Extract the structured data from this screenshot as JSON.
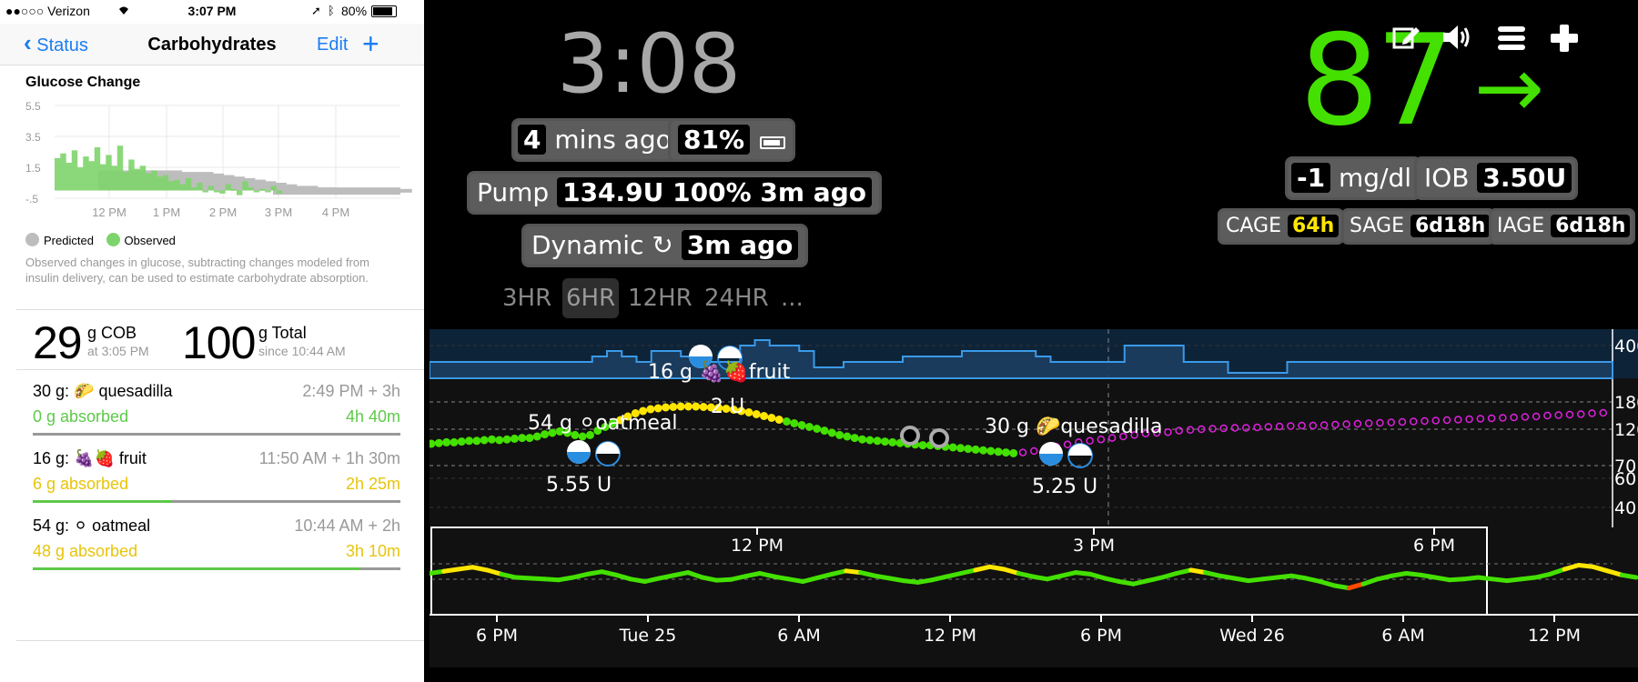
{
  "left": {
    "status_bar": {
      "carrier": "●●○○○ Verizon",
      "time": "3:07 PM",
      "battery": "80%"
    },
    "nav": {
      "back_label": "Status",
      "title": "Carbohydrates",
      "edit_label": "Edit",
      "add_label": "+"
    },
    "glucose_change": {
      "title": "Glucose Change",
      "legend_predicted": "Predicted",
      "legend_observed": "Observed",
      "colors": {
        "observed": "#7ed46c",
        "predicted": "#bdbdbd"
      },
      "caption": "Observed changes in glucose, subtracting changes modeled from insulin delivery, can be used to estimate carbohydrate absorption."
    },
    "cob": {
      "value": "29",
      "unit": "g COB",
      "sub": "at 3:05 PM"
    },
    "total": {
      "value": "100",
      "unit": "g Total",
      "sub": "since 10:44 AM"
    },
    "entries": [
      {
        "name": "30 g: 🌮 quesadilla",
        "time": "2:49 PM + 3h",
        "absorbed": "0 g absorbed",
        "remaining": "4h 40m",
        "color": "#5ec94a",
        "progress": 0.0
      },
      {
        "name": "16 g: 🍇🍓 fruit",
        "time": "11:50 AM + 1h 30m",
        "absorbed": "6 g absorbed",
        "remaining": "2h 25m",
        "color": "#e8c40a",
        "progress": 0.375
      },
      {
        "name": "54 g: ⚪ oatmeal",
        "time": "10:44 AM + 2h",
        "absorbed": "48 g absorbed",
        "remaining": "3h 10m",
        "color": "#e8c40a",
        "progress": 0.89
      }
    ]
  },
  "right": {
    "clock": "3:08",
    "bg": {
      "value": "87",
      "arrow": "→",
      "color": "#44e000"
    },
    "icons": [
      "pencil-icon",
      "speaker-icon",
      "menu-icon",
      "plus-icon"
    ],
    "last_reading": {
      "value": "4",
      "label": "mins ago"
    },
    "phone_battery": {
      "value": "81%"
    },
    "pump": {
      "label": "Pump",
      "value": "134.9U 100% 3m ago"
    },
    "loop": {
      "label": "Dynamic ↻",
      "value": "3m ago"
    },
    "delta": {
      "value": "-1",
      "unit": "mg/dl"
    },
    "iob": {
      "label": "IOB",
      "value": "3.50U"
    },
    "cage": {
      "label": "CAGE",
      "value": "64h"
    },
    "sage": {
      "label": "SAGE",
      "value": "6d18h"
    },
    "iage": {
      "label": "IAGE",
      "value": "6d18h"
    },
    "ranges": [
      "3HR",
      "6HR",
      "12HR",
      "24HR",
      "..."
    ],
    "active_range": "6HR"
  },
  "chart_data": [
    {
      "type": "bar",
      "title": "Glucose Change",
      "ylim": [
        -0.5,
        5.5
      ],
      "yticks": [
        "5.5",
        "3.5",
        "1.5",
        "-.5"
      ],
      "xticks": [
        "12 PM",
        "1 PM",
        "2 PM",
        "3 PM",
        "4 PM"
      ],
      "series": [
        {
          "name": "Observed",
          "values": [
            2.1,
            2.4,
            1.8,
            2.6,
            1.5,
            2.2,
            1.9,
            2.8,
            1.7,
            2.3,
            1.6,
            2.9,
            1.2,
            2.0,
            1.4,
            1.6,
            1.1,
            1.3,
            0.9,
            1.0,
            0.6,
            0.7,
            0.4,
            0.8,
            0.2,
            0.5,
            -0.1,
            0.3,
            0.0,
            -0.2,
            0.4,
            0.1,
            -0.3,
            0.6,
            0.2,
            -0.1,
            0.1,
            0.0,
            0.3,
            -0.2
          ]
        },
        {
          "name": "Predicted",
          "values": [
            1.3,
            1.3,
            1.3,
            1.3,
            1.3,
            1.3,
            1.3,
            1.3,
            1.2,
            1.2,
            1.2,
            1.1,
            1.0,
            0.9,
            0.8,
            0.7,
            0.6,
            0.5,
            0.4,
            0.3,
            0.3,
            0.2,
            0.2,
            0.1,
            0.1,
            0.1,
            0.1,
            0.1,
            0.1,
            0.1
          ]
        }
      ]
    },
    {
      "type": "scatter",
      "yticks": [
        400,
        180,
        120,
        70,
        60,
        40
      ],
      "annotations": [
        {
          "text": "54 g ⚪oatmeal",
          "kind": "carbs"
        },
        {
          "text": "16 g 🍇🍓fruit",
          "kind": "carbs"
        },
        {
          "text": "30 g 🌮quesadilla",
          "kind": "carbs"
        },
        {
          "text": "5.55 U",
          "kind": "bolus"
        },
        {
          "text": "2 U",
          "kind": "bolus"
        },
        {
          "text": "5.25 U",
          "kind": "bolus"
        }
      ],
      "bg_series": [
        {
          "name": "observed",
          "color_low": "#44e000",
          "color_high": "#ffe600",
          "values": [
            100,
            101,
            102,
            102,
            103,
            104,
            104,
            105,
            106,
            105,
            106,
            107,
            108,
            108,
            110,
            113,
            115,
            117,
            115,
            112,
            110,
            112,
            118,
            125,
            133,
            140,
            148,
            155,
            160,
            164,
            166,
            168,
            169,
            170,
            170,
            170,
            169,
            168,
            167,
            165,
            163,
            160,
            157,
            153,
            149,
            145,
            141,
            137,
            133,
            129,
            125,
            121,
            118,
            115,
            112,
            110,
            108,
            106,
            105,
            104,
            103,
            102,
            101,
            100,
            99,
            98,
            98,
            97,
            96,
            95,
            94,
            93,
            92,
            91,
            90,
            89,
            88,
            87
          ]
        },
        {
          "name": "predicted",
          "color": "#e020e0",
          "values": [
            88,
            90,
            93,
            96,
            99,
            102,
            104,
            106,
            108,
            110,
            112,
            114,
            115,
            116,
            118,
            119,
            120,
            121,
            122,
            123,
            123,
            124,
            125,
            126,
            127,
            128,
            128,
            129,
            130,
            131,
            132,
            133,
            134,
            135,
            136,
            137,
            138,
            139,
            140,
            141,
            142,
            143,
            144,
            145,
            146,
            147,
            148,
            150,
            151,
            152,
            153,
            155,
            156
          ]
        }
      ],
      "basal_values": [
        3,
        3,
        3,
        3,
        3,
        3,
        3,
        3,
        3,
        3,
        3,
        4,
        5,
        4,
        3,
        5,
        5,
        4,
        4,
        3,
        3,
        6,
        7,
        6,
        6,
        5,
        2,
        2,
        3,
        3,
        3,
        3,
        4,
        4,
        4,
        4,
        5,
        5,
        5,
        5,
        5,
        4,
        3,
        3,
        3,
        3,
        3,
        6,
        6,
        6,
        6,
        3,
        3,
        3,
        1,
        1,
        1,
        1,
        3,
        3,
        3,
        3,
        3,
        3,
        3,
        3,
        3,
        3,
        3,
        3,
        3,
        3,
        3,
        3,
        3,
        3,
        3,
        3,
        3,
        3
      ]
    },
    {
      "type": "line",
      "name": "overview",
      "xticks_top": [
        "12 PM",
        "3 PM",
        "6 PM"
      ],
      "xticks_bottom": [
        "6 PM",
        "Tue 25",
        "6 AM",
        "12 PM",
        "6 PM",
        "Wed 26",
        "6 AM",
        "12 PM"
      ],
      "values": [
        110,
        115,
        120,
        125,
        118,
        108,
        100,
        98,
        96,
        94,
        100,
        108,
        114,
        106,
        96,
        90,
        98,
        105,
        112,
        100,
        93,
        95,
        103,
        110,
        102,
        96,
        90,
        99,
        108,
        116,
        112,
        104,
        98,
        92,
        88,
        94,
        102,
        110,
        118,
        126,
        120,
        110,
        102,
        96,
        104,
        112,
        108,
        98,
        90,
        84,
        92,
        100,
        110,
        118,
        112,
        104,
        98,
        92,
        96,
        100,
        104,
        98,
        90,
        80,
        74,
        84,
        96,
        104,
        110,
        106,
        100,
        94,
        96,
        100,
        96,
        92,
        96,
        100,
        108,
        120,
        130,
        126,
        116,
        106,
        100
      ]
    }
  ]
}
